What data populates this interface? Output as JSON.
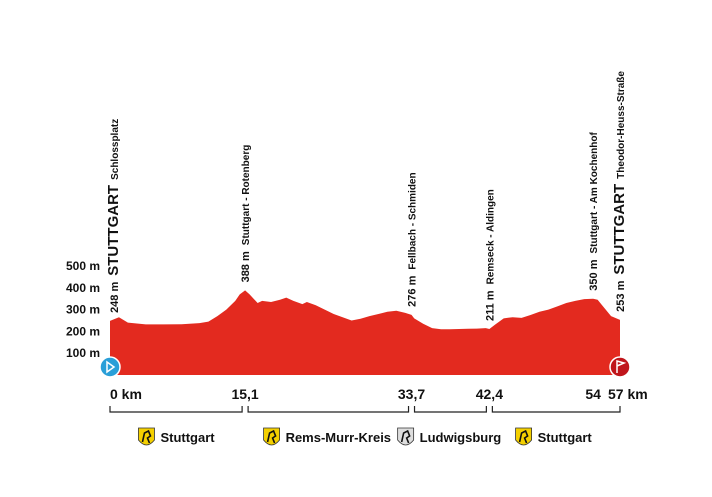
{
  "chart_data": {
    "type": "area",
    "x": [
      0,
      1,
      2,
      4,
      6,
      8,
      10,
      11,
      12,
      13,
      14,
      14.5,
      15.1,
      15.6,
      16.5,
      17,
      18,
      19,
      19.7,
      20.5,
      21.5,
      22,
      23,
      24,
      25,
      26,
      27,
      28,
      29,
      30,
      31,
      32,
      33,
      33.7,
      34,
      35,
      36,
      37,
      38,
      40,
      41,
      42,
      42.4,
      43,
      44,
      45,
      46,
      47,
      48,
      49,
      50,
      51,
      52,
      53,
      54,
      54.5,
      55,
      56,
      57
    ],
    "values": [
      248,
      265,
      240,
      232,
      232,
      233,
      238,
      245,
      270,
      300,
      340,
      370,
      388,
      370,
      330,
      340,
      335,
      345,
      355,
      340,
      325,
      335,
      320,
      300,
      280,
      265,
      250,
      258,
      270,
      280,
      290,
      295,
      285,
      276,
      260,
      235,
      215,
      210,
      210,
      212,
      213,
      215,
      211,
      230,
      260,
      265,
      262,
      275,
      290,
      300,
      315,
      330,
      340,
      348,
      350,
      345,
      320,
      270,
      253
    ],
    "color": "#e32a1f",
    "xlim": [
      0,
      57
    ],
    "ylim": [
      0,
      500
    ],
    "xticks": [
      {
        "value": 0,
        "label": "0 km"
      },
      {
        "value": 15.1,
        "label": "15,1"
      },
      {
        "value": 33.7,
        "label": "33,7"
      },
      {
        "value": 42.4,
        "label": "42,4"
      },
      54,
      {
        "value": 57,
        "label": "57 km"
      }
    ],
    "yticks": [
      {
        "value": 100,
        "label": "100 m"
      },
      {
        "value": 200,
        "label": "200 m"
      },
      {
        "value": 300,
        "label": "300 m"
      },
      {
        "value": 400,
        "label": "400 m"
      },
      {
        "value": 500,
        "label": "500 m"
      }
    ],
    "annotations": [
      {
        "x": 0,
        "value": 248,
        "value_label": "248 m",
        "name": "STUTTGART",
        "detail": "Schlossplatz"
      },
      {
        "x": 15.1,
        "value": 388,
        "value_label": "388 m",
        "name": "Stuttgart - Rotenberg"
      },
      {
        "x": 33.7,
        "value": 276,
        "value_label": "276 m",
        "name": "Fellbach - Schmiden"
      },
      {
        "x": 42.4,
        "value": 211,
        "value_label": "211 m",
        "name": "Remseck - Aldingen"
      },
      {
        "x": 54,
        "value": 350,
        "value_label": "350 m",
        "name": "Stuttgart - Am Kochenhof"
      },
      {
        "x": 57,
        "value": 253,
        "value_label": "253 m",
        "name": "STUTTGART",
        "detail": "Theodor-Heuss-Straße"
      }
    ],
    "regions": [
      {
        "name": "Stuttgart",
        "from": 0,
        "to": 15.1
      },
      {
        "name": "Rems-Murr-Kreis",
        "from": 15.1,
        "to": 33.7
      },
      {
        "name": "Ludwigsburg",
        "from": 33.7,
        "to": 42.4
      },
      {
        "name": "Stuttgart",
        "from": 42.4,
        "to": 57
      }
    ]
  }
}
